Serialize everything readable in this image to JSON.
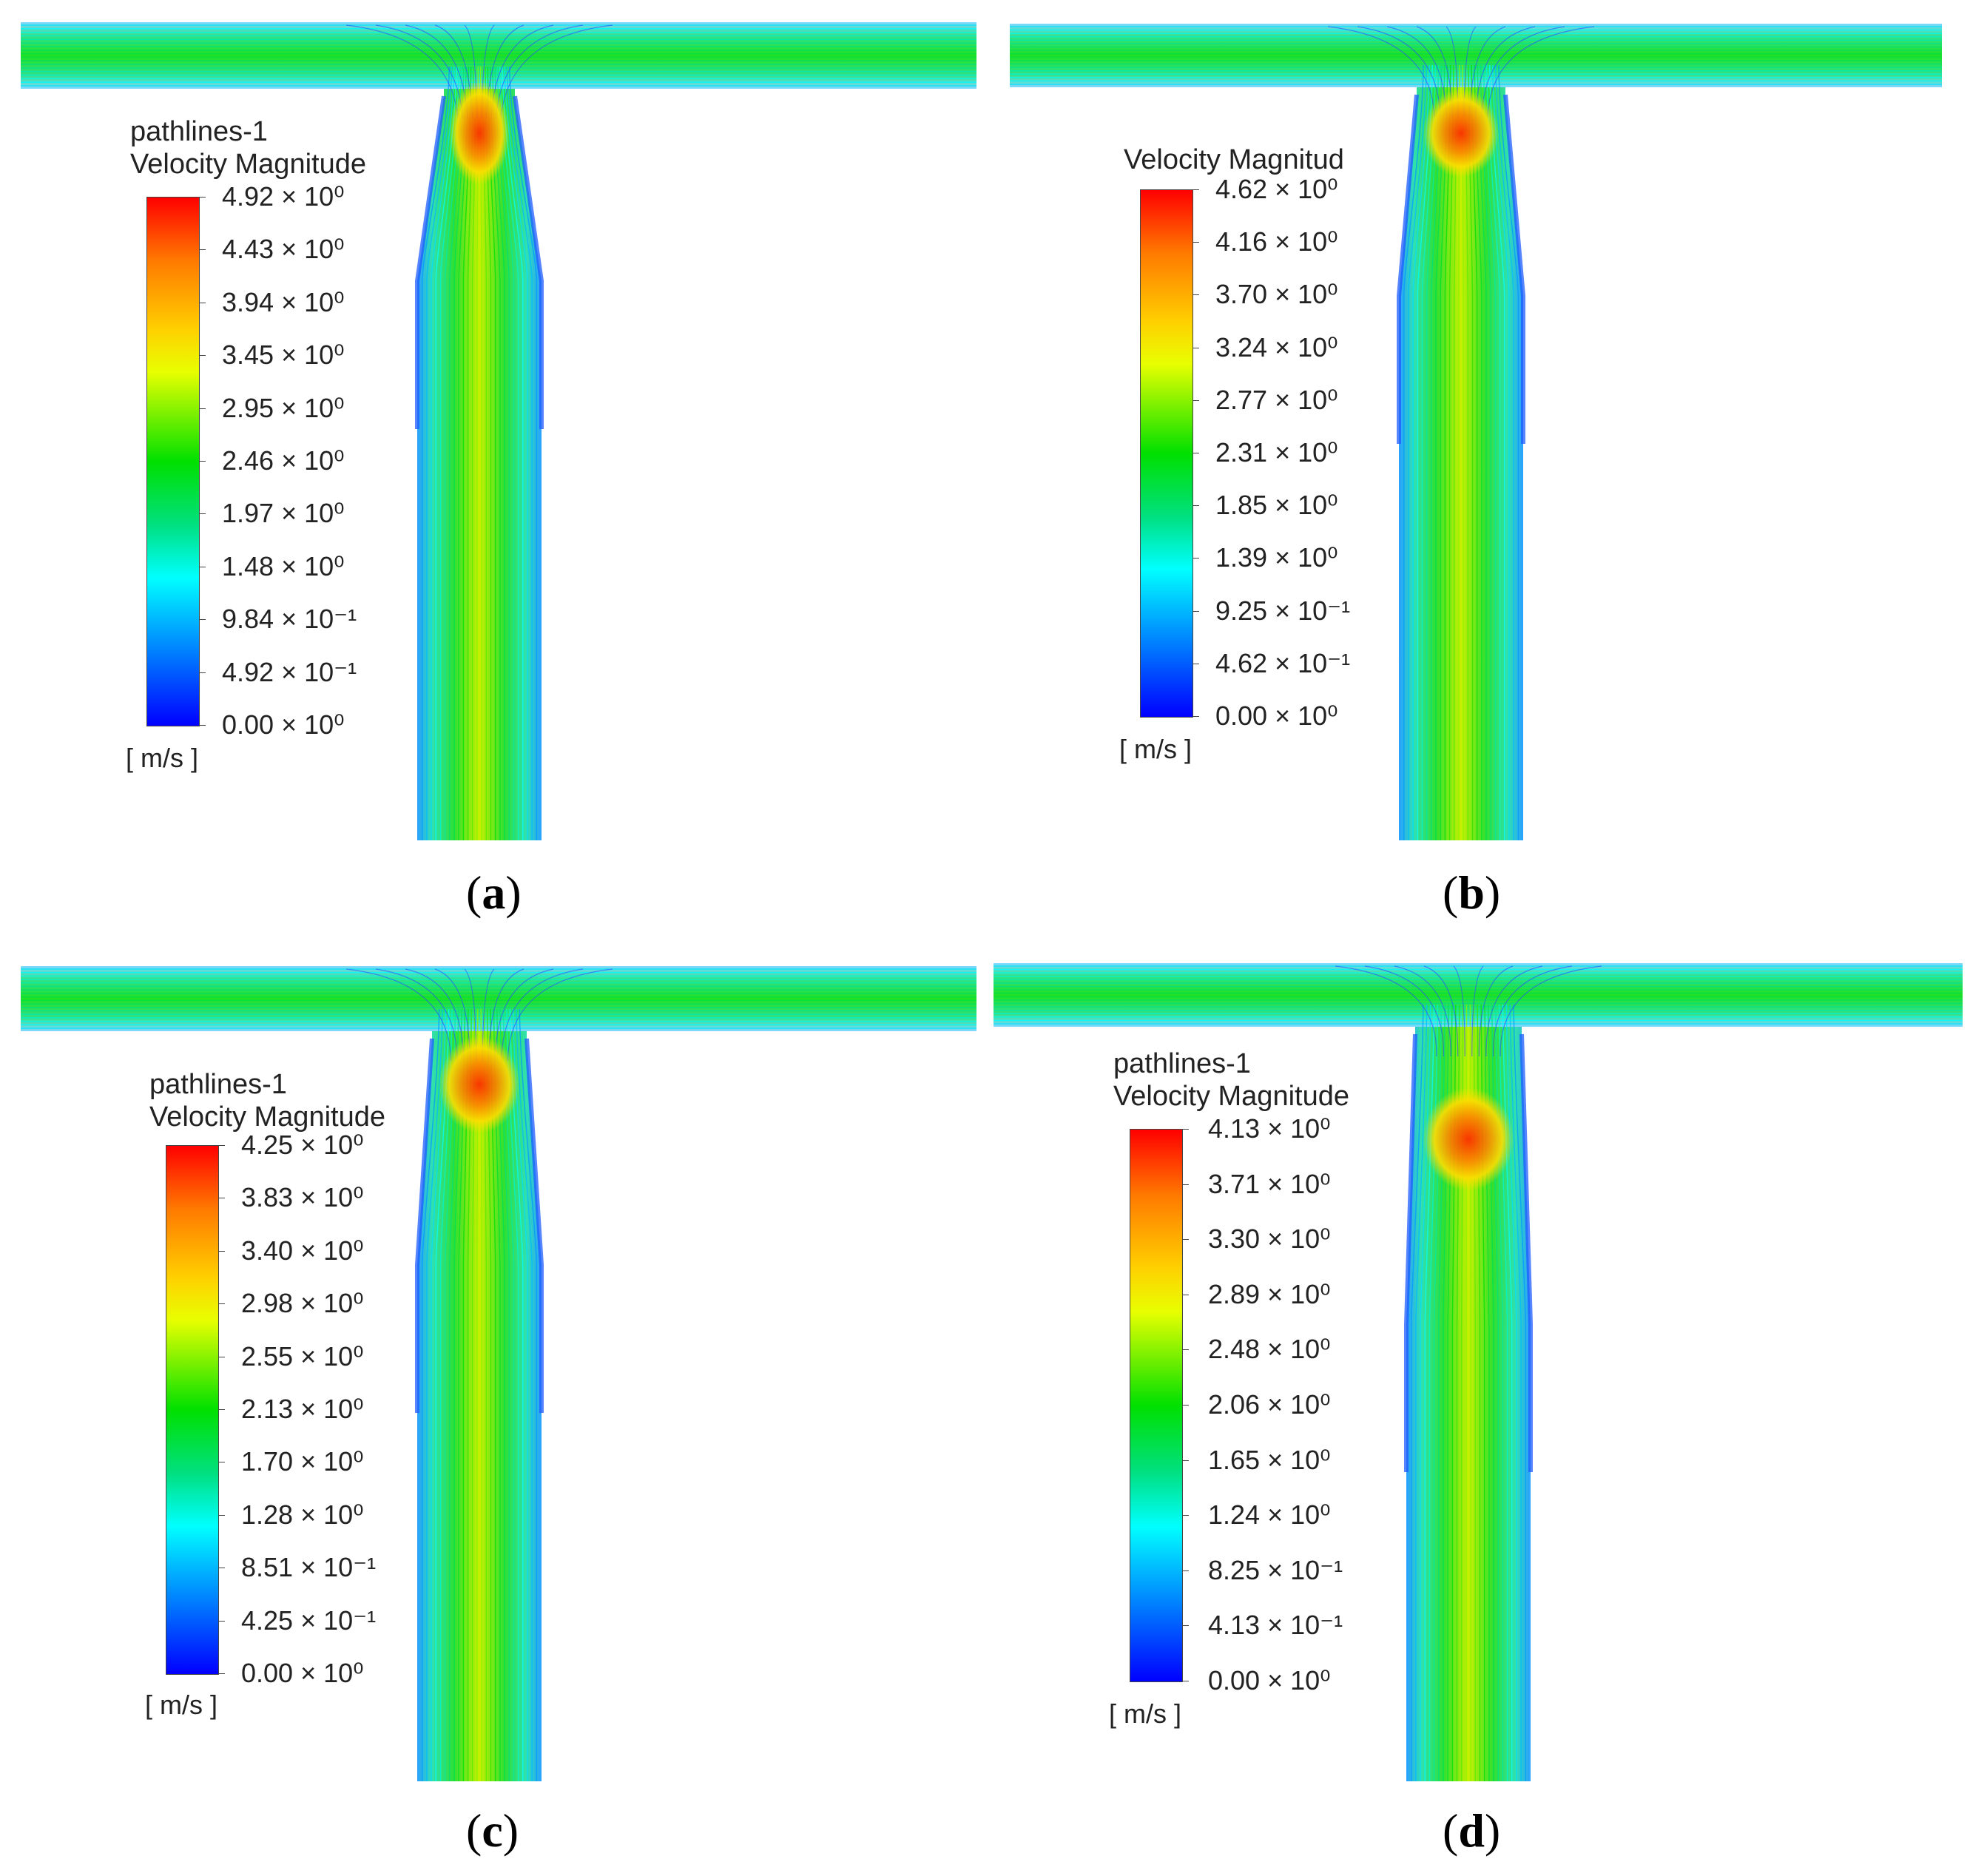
{
  "panels": [
    {
      "id": "a",
      "caption_letter": "a",
      "legend_title_lines": [
        "pathlines-1",
        "Velocity Magnitude"
      ],
      "unit": "[ m/s ]",
      "labels": [
        "4.92 × 10⁰",
        "4.43 × 10⁰",
        "3.94 × 10⁰",
        "3.45 × 10⁰",
        "2.95 × 10⁰",
        "2.46 × 10⁰",
        "1.97 × 10⁰",
        "1.48 × 10⁰",
        "9.84 × 10⁻¹",
        "4.92 × 10⁻¹",
        "0.00 × 10⁰"
      ]
    },
    {
      "id": "b",
      "caption_letter": "b",
      "legend_title_lines": [
        "Velocity Magnitud"
      ],
      "unit": "[ m/s ]",
      "labels": [
        "4.62 × 10⁰",
        "4.16 × 10⁰",
        "3.70 × 10⁰",
        "3.24 × 10⁰",
        "2.77 × 10⁰",
        "2.31 × 10⁰",
        "1.85 × 10⁰",
        "1.39 × 10⁰",
        "9.25 × 10⁻¹",
        "4.62 × 10⁻¹",
        "0.00 × 10⁰"
      ]
    },
    {
      "id": "c",
      "caption_letter": "c",
      "legend_title_lines": [
        "pathlines-1",
        "Velocity Magnitude"
      ],
      "unit": "[ m/s ]",
      "labels": [
        "4.25 × 10⁰",
        "3.83 × 10⁰",
        "3.40 × 10⁰",
        "2.98 × 10⁰",
        "2.55 × 10⁰",
        "2.13 × 10⁰",
        "1.70 × 10⁰",
        "1.28 × 10⁰",
        "8.51 × 10⁻¹",
        "4.25 × 10⁻¹",
        "0.00 × 10⁰"
      ]
    },
    {
      "id": "d",
      "caption_letter": "d",
      "legend_title_lines": [
        "pathlines-1",
        "Velocity Magnitude"
      ],
      "unit": "[ m/s ]",
      "labels": [
        "4.13 × 10⁰",
        "3.71 × 10⁰",
        "3.30 × 10⁰",
        "2.89 × 10⁰",
        "2.48 × 10⁰",
        "2.06 × 10⁰",
        "1.65 × 10⁰",
        "1.24 × 10⁰",
        "8.25 × 10⁻¹",
        "4.13 × 10⁻¹",
        "0.00 × 10⁰"
      ]
    }
  ]
}
